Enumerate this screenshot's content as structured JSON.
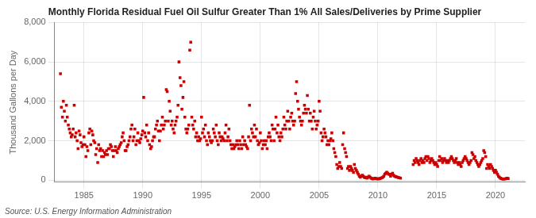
{
  "chart_data": {
    "type": "scatter",
    "title": "Monthly Florida Residual Fuel Oil Sulfur Greater Than 1% All Sales/Deliveries by Prime Supplier",
    "ylabel": "Thousand Gallons per Day",
    "source": "Source: U.S. Energy Information Administration",
    "color": "#cc0000",
    "marker": "square",
    "grid": true,
    "xlim": [
      1982.5,
      2022.5
    ],
    "ylim": [
      -100,
      8000
    ],
    "xticks": [
      1985,
      1990,
      1995,
      2000,
      2005,
      2010,
      2015,
      2020
    ],
    "yticks": [
      0,
      {
        "value": 2000,
        "label": "2,000"
      },
      {
        "value": 4000,
        "label": "4,000"
      },
      {
        "value": 6000,
        "label": "6,000"
      },
      {
        "value": 8000,
        "label": "8,000"
      }
    ],
    "x": [
      1983.0,
      1983.08,
      1983.17,
      1983.25,
      1983.33,
      1983.42,
      1983.5,
      1983.58,
      1983.67,
      1983.75,
      1983.83,
      1983.92,
      1984.0,
      1984.08,
      1984.17,
      1984.25,
      1984.33,
      1984.42,
      1984.5,
      1984.58,
      1984.67,
      1984.75,
      1984.83,
      1984.92,
      1985.0,
      1985.08,
      1985.17,
      1985.25,
      1985.33,
      1985.42,
      1985.5,
      1985.58,
      1985.67,
      1985.75,
      1985.83,
      1985.92,
      1986.0,
      1986.08,
      1986.17,
      1986.25,
      1986.33,
      1986.42,
      1986.5,
      1986.58,
      1986.67,
      1986.75,
      1986.83,
      1986.92,
      1987.0,
      1987.08,
      1987.17,
      1987.25,
      1987.33,
      1987.42,
      1987.5,
      1987.58,
      1987.67,
      1987.75,
      1987.83,
      1987.92,
      1988.0,
      1988.08,
      1988.17,
      1988.25,
      1988.33,
      1988.42,
      1988.5,
      1988.58,
      1988.67,
      1988.75,
      1988.83,
      1988.92,
      1989.0,
      1989.08,
      1989.17,
      1989.25,
      1989.33,
      1989.42,
      1989.5,
      1989.58,
      1989.67,
      1989.75,
      1989.83,
      1989.92,
      1990.0,
      1990.08,
      1990.17,
      1990.25,
      1990.33,
      1990.42,
      1990.5,
      1990.58,
      1990.67,
      1990.75,
      1990.83,
      1990.92,
      1991.0,
      1991.08,
      1991.17,
      1991.25,
      1991.33,
      1991.42,
      1991.5,
      1991.58,
      1991.67,
      1991.75,
      1991.83,
      1991.92,
      1992.0,
      1992.08,
      1992.17,
      1992.25,
      1992.33,
      1992.42,
      1992.5,
      1992.58,
      1992.67,
      1992.75,
      1992.83,
      1992.92,
      1993.0,
      1993.08,
      1993.17,
      1993.25,
      1993.33,
      1993.42,
      1993.5,
      1993.58,
      1993.67,
      1993.75,
      1993.83,
      1993.92,
      1994.0,
      1994.08,
      1994.17,
      1994.25,
      1994.33,
      1994.42,
      1994.5,
      1994.58,
      1994.67,
      1994.75,
      1994.83,
      1994.92,
      1995.0,
      1995.08,
      1995.17,
      1995.25,
      1995.33,
      1995.42,
      1995.5,
      1995.58,
      1995.67,
      1995.75,
      1995.83,
      1995.92,
      1996.0,
      1996.08,
      1996.17,
      1996.25,
      1996.33,
      1996.42,
      1996.5,
      1996.58,
      1996.67,
      1996.75,
      1996.83,
      1996.92,
      1997.0,
      1997.08,
      1997.17,
      1997.25,
      1997.33,
      1997.42,
      1997.5,
      1997.58,
      1997.67,
      1997.75,
      1997.83,
      1997.92,
      1998.0,
      1998.08,
      1998.17,
      1998.25,
      1998.33,
      1998.42,
      1998.5,
      1998.58,
      1998.67,
      1998.75,
      1998.83,
      1998.92,
      1999.0,
      1999.08,
      1999.17,
      1999.25,
      1999.33,
      1999.42,
      1999.5,
      1999.58,
      1999.67,
      1999.75,
      1999.83,
      1999.92,
      2000.0,
      2000.08,
      2000.17,
      2000.25,
      2000.33,
      2000.42,
      2000.5,
      2000.58,
      2000.67,
      2000.75,
      2000.83,
      2000.92,
      2001.0,
      2001.08,
      2001.17,
      2001.25,
      2001.33,
      2001.42,
      2001.5,
      2001.58,
      2001.67,
      2001.75,
      2001.83,
      2001.92,
      2002.0,
      2002.08,
      2002.17,
      2002.25,
      2002.33,
      2002.42,
      2002.5,
      2002.58,
      2002.67,
      2002.75,
      2002.83,
      2002.92,
      2003.0,
      2003.08,
      2003.17,
      2003.25,
      2003.33,
      2003.42,
      2003.5,
      2003.58,
      2003.67,
      2003.75,
      2003.83,
      2003.92,
      2004.0,
      2004.08,
      2004.17,
      2004.25,
      2004.33,
      2004.42,
      2004.5,
      2004.58,
      2004.67,
      2004.75,
      2004.83,
      2004.92,
      2005.0,
      2005.08,
      2005.17,
      2005.25,
      2005.33,
      2005.42,
      2005.5,
      2005.58,
      2005.67,
      2005.75,
      2005.83,
      2005.92,
      2006.0,
      2006.08,
      2006.17,
      2006.25,
      2006.33,
      2006.42,
      2006.5,
      2006.58,
      2006.67,
      2006.75,
      2006.83,
      2006.92,
      2007.0,
      2007.08,
      2007.17,
      2007.25,
      2007.33,
      2007.42,
      2007.5,
      2007.58,
      2007.67,
      2007.75,
      2007.83,
      2007.92,
      2008.0,
      2008.08,
      2008.17,
      2008.25,
      2008.33,
      2008.42,
      2008.5,
      2008.58,
      2008.67,
      2008.75,
      2008.83,
      2008.92,
      2009.0,
      2009.08,
      2009.17,
      2009.25,
      2009.33,
      2009.42,
      2009.5,
      2009.58,
      2009.67,
      2009.75,
      2009.83,
      2009.92,
      2010.0,
      2010.08,
      2010.17,
      2010.25,
      2010.33,
      2010.42,
      2010.5,
      2010.58,
      2010.67,
      2010.75,
      2010.83,
      2010.92,
      2011.0,
      2011.08,
      2011.17,
      2011.25,
      2011.33,
      2011.42,
      2011.5,
      2011.58,
      2011.67,
      2011.75,
      2011.83,
      2011.92,
      2013.0,
      2013.08,
      2013.17,
      2013.25,
      2013.33,
      2013.42,
      2013.5,
      2013.58,
      2013.67,
      2013.75,
      2013.83,
      2013.92,
      2014.0,
      2014.08,
      2014.17,
      2014.25,
      2014.33,
      2014.42,
      2014.5,
      2014.58,
      2014.67,
      2014.75,
      2014.83,
      2014.92,
      2015.0,
      2015.08,
      2015.17,
      2015.25,
      2015.33,
      2015.42,
      2015.5,
      2015.58,
      2015.67,
      2015.75,
      2015.83,
      2015.92,
      2016.0,
      2016.08,
      2016.17,
      2016.25,
      2016.33,
      2016.42,
      2016.5,
      2016.58,
      2016.67,
      2016.75,
      2016.83,
      2016.92,
      2017.0,
      2017.08,
      2017.17,
      2017.25,
      2017.33,
      2017.42,
      2017.5,
      2017.58,
      2017.67,
      2017.75,
      2017.83,
      2017.92,
      2018.0,
      2018.08,
      2018.17,
      2018.25,
      2018.33,
      2018.42,
      2018.5,
      2018.58,
      2018.67,
      2018.75,
      2018.83,
      2018.92,
      2019.0,
      2019.08,
      2019.17,
      2019.25,
      2019.33,
      2019.42,
      2019.5,
      2019.58,
      2019.67,
      2019.75,
      2019.83,
      2019.92,
      2020.0,
      2020.08,
      2020.17,
      2020.25,
      2020.33,
      2020.42,
      2020.5,
      2020.58,
      2020.67,
      2020.75,
      2020.83,
      2020.92,
      2021.0,
      2021.08
    ],
    "values": [
      5400,
      3700,
      3200,
      4000,
      3500,
      3000,
      3800,
      3200,
      2800,
      2600,
      2400,
      2200,
      2300,
      2600,
      3800,
      2200,
      2400,
      2000,
      1600,
      2500,
      2300,
      1900,
      1700,
      1800,
      2200,
      1800,
      1200,
      1700,
      1500,
      2400,
      2600,
      1800,
      2500,
      2300,
      2000,
      1900,
      1300,
      1600,
      900,
      1800,
      1500,
      1600,
      1200,
      1500,
      1200,
      1400,
      1300,
      1500,
      1300,
      1600,
      1600,
      1800,
      1700,
      1500,
      1200,
      1500,
      1700,
      1500,
      1400,
      1600,
      1700,
      1800,
      1900,
      2200,
      2400,
      2000,
      1500,
      1500,
      1700,
      1800,
      2000,
      2200,
      2600,
      2800,
      2000,
      2200,
      2600,
      1800,
      2000,
      2400,
      2000,
      1900,
      2100,
      2300,
      2500,
      4200,
      2400,
      2200,
      2800,
      2000,
      2400,
      1800,
      1600,
      1700,
      2000,
      2200,
      2200,
      2600,
      2800,
      3000,
      2500,
      2000,
      2500,
      2800,
      3200,
      2600,
      2800,
      3000,
      4600,
      4500,
      3000,
      4000,
      3500,
      2800,
      3000,
      2600,
      2400,
      2800,
      3000,
      3200,
      3800,
      6000,
      5200,
      4800,
      3600,
      4200,
      5000,
      3200,
      2600,
      2400,
      2600,
      2800,
      6600,
      7000,
      3200,
      2800,
      2600,
      3000,
      2200,
      2400,
      2000,
      2200,
      2000,
      2100,
      3200,
      2400,
      2600,
      2200,
      2800,
      2000,
      1800,
      2400,
      2200,
      2000,
      1900,
      2000,
      2600,
      2400,
      2200,
      2800,
      2000,
      1800,
      2400,
      2200,
      2000,
      2200,
      2100,
      2000,
      2400,
      2800,
      2000,
      2200,
      2600,
      2000,
      1800,
      1600,
      1800,
      1600,
      1700,
      1800,
      2000,
      1800,
      1600,
      2000,
      1800,
      1600,
      2200,
      1800,
      2000,
      1800,
      1700,
      1600,
      2200,
      3800,
      2000,
      2600,
      2400,
      2200,
      2800,
      2200,
      2600,
      2000,
      1800,
      1900,
      2400,
      2000,
      1600,
      1800,
      2000,
      1800,
      2000,
      1600,
      2200,
      2400,
      2200,
      2000,
      2800,
      2600,
      2000,
      2600,
      3200,
      2400,
      2800,
      2200,
      2000,
      2400,
      2200,
      2600,
      3200,
      2800,
      2600,
      3000,
      3500,
      3000,
      2600,
      3200,
      3400,
      3000,
      2800,
      3000,
      4400,
      5000,
      4000,
      3600,
      3200,
      3000,
      2800,
      3000,
      3400,
      3800,
      3600,
      3400,
      4300,
      3600,
      3000,
      3400,
      3000,
      2600,
      3200,
      3500,
      3000,
      2600,
      2800,
      3000,
      4000,
      3500,
      2400,
      2000,
      2200,
      2600,
      2400,
      2200,
      1800,
      2000,
      1800,
      2000,
      2100,
      2400,
      2000,
      1600,
      1400,
      1200,
      800,
      600,
      700,
      900,
      700,
      600,
      1800,
      2400,
      1600,
      1400,
      1200,
      600,
      700,
      500,
      700,
      600,
      500,
      400,
      800,
      600,
      500,
      400,
      300,
      200,
      150,
      200,
      250,
      200,
      150,
      120,
      150,
      100,
      150,
      200,
      150,
      100,
      80,
      60,
      80,
      100,
      80,
      60,
      80,
      60,
      80,
      100,
      120,
      150,
      200,
      300,
      350,
      400,
      350,
      300,
      300,
      200,
      300,
      350,
      250,
      200,
      180,
      160,
      150,
      130,
      120,
      100,
      800,
      1000,
      900,
      1100,
      1000,
      900,
      800,
      1000,
      1100,
      900,
      1000,
      900,
      1100,
      1200,
      1000,
      1200,
      1100,
      900,
      1000,
      1100,
      1000,
      900,
      800,
      900,
      800,
      700,
      1000,
      1200,
      1000,
      1100,
      900,
      1000,
      1100,
      1000,
      900,
      1000,
      900,
      1000,
      1100,
      1200,
      1100,
      1000,
      900,
      1000,
      1100,
      900,
      800,
      900,
      800,
      700,
      900,
      1000,
      1100,
      1200,
      1100,
      1000,
      900,
      800,
      900,
      1000,
      1400,
      1300,
      1100,
      1200,
      1000,
      900,
      800,
      700,
      800,
      900,
      1000,
      1100,
      1500,
      1400,
      1200,
      600,
      800,
      700,
      600,
      800,
      700,
      600,
      500,
      400,
      500,
      400,
      300,
      200,
      150,
      100,
      80,
      60,
      50,
      60,
      70,
      80,
      100,
      80
    ]
  }
}
